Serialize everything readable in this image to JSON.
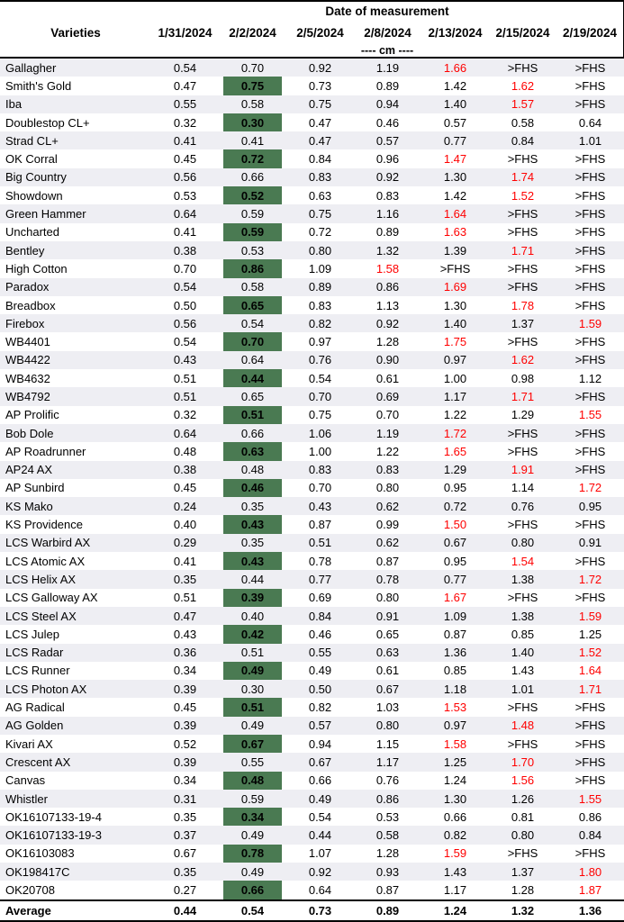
{
  "table": {
    "title": "Date of measurement",
    "unit_note": "---- cm ----",
    "columns": [
      "Varieties",
      "1/31/2024",
      "2/2/2024",
      "2/5/2024",
      "2/8/2024",
      "2/13/2024",
      "2/15/2024",
      "2/19/2024"
    ],
    "colors": {
      "highlight_green": "#4a7a52",
      "alert_red": "#ff0000",
      "row_stripe": "#eeeef3"
    },
    "rows": [
      {
        "name": "Gallagher",
        "values": [
          "0.54",
          "0.70",
          "0.92",
          "1.19",
          "1.66",
          ">FHS",
          ">FHS"
        ],
        "green": -1,
        "red": [
          4
        ]
      },
      {
        "name": "Smith's Gold",
        "values": [
          "0.47",
          "0.75",
          "0.73",
          "0.89",
          "1.42",
          "1.62",
          ">FHS"
        ],
        "green": 1,
        "red": [
          5
        ]
      },
      {
        "name": "Iba",
        "values": [
          "0.55",
          "0.58",
          "0.75",
          "0.94",
          "1.40",
          "1.57",
          ">FHS"
        ],
        "green": -1,
        "red": [
          5
        ]
      },
      {
        "name": "Doublestop CL+",
        "values": [
          "0.32",
          "0.30",
          "0.47",
          "0.46",
          "0.57",
          "0.58",
          "0.64"
        ],
        "green": 1,
        "red": []
      },
      {
        "name": "Strad CL+",
        "values": [
          "0.41",
          "0.41",
          "0.47",
          "0.57",
          "0.77",
          "0.84",
          "1.01"
        ],
        "green": -1,
        "red": []
      },
      {
        "name": "OK Corral",
        "values": [
          "0.45",
          "0.72",
          "0.84",
          "0.96",
          "1.47",
          ">FHS",
          ">FHS"
        ],
        "green": 1,
        "red": [
          4
        ]
      },
      {
        "name": "Big Country",
        "values": [
          "0.56",
          "0.66",
          "0.83",
          "0.92",
          "1.30",
          "1.74",
          ">FHS"
        ],
        "green": -1,
        "red": [
          5
        ]
      },
      {
        "name": "Showdown",
        "values": [
          "0.53",
          "0.52",
          "0.63",
          "0.83",
          "1.42",
          "1.52",
          ">FHS"
        ],
        "green": 1,
        "red": [
          5
        ]
      },
      {
        "name": "Green Hammer",
        "values": [
          "0.64",
          "0.59",
          "0.75",
          "1.16",
          "1.64",
          ">FHS",
          ">FHS"
        ],
        "green": -1,
        "red": [
          4
        ]
      },
      {
        "name": "Uncharted",
        "values": [
          "0.41",
          "0.59",
          "0.72",
          "0.89",
          "1.63",
          ">FHS",
          ">FHS"
        ],
        "green": 1,
        "red": [
          4
        ]
      },
      {
        "name": "Bentley",
        "values": [
          "0.38",
          "0.53",
          "0.80",
          "1.32",
          "1.39",
          "1.71",
          ">FHS"
        ],
        "green": -1,
        "red": [
          5
        ]
      },
      {
        "name": "High Cotton",
        "values": [
          "0.70",
          "0.86",
          "1.09",
          "1.58",
          ">FHS",
          ">FHS",
          ">FHS"
        ],
        "green": 1,
        "red": [
          3
        ]
      },
      {
        "name": "Paradox",
        "values": [
          "0.54",
          "0.58",
          "0.89",
          "0.86",
          "1.69",
          ">FHS",
          ">FHS"
        ],
        "green": -1,
        "red": [
          4
        ]
      },
      {
        "name": "Breadbox",
        "values": [
          "0.50",
          "0.65",
          "0.83",
          "1.13",
          "1.30",
          "1.78",
          ">FHS"
        ],
        "green": 1,
        "red": [
          5
        ]
      },
      {
        "name": "Firebox",
        "values": [
          "0.56",
          "0.54",
          "0.82",
          "0.92",
          "1.40",
          "1.37",
          "1.59"
        ],
        "green": -1,
        "red": [
          6
        ]
      },
      {
        "name": "WB4401",
        "values": [
          "0.54",
          "0.70",
          "0.97",
          "1.28",
          "1.75",
          ">FHS",
          ">FHS"
        ],
        "green": 1,
        "red": [
          4
        ]
      },
      {
        "name": "WB4422",
        "values": [
          "0.43",
          "0.64",
          "0.76",
          "0.90",
          "0.97",
          "1.62",
          ">FHS"
        ],
        "green": -1,
        "red": [
          5
        ]
      },
      {
        "name": "WB4632",
        "values": [
          "0.51",
          "0.44",
          "0.54",
          "0.61",
          "1.00",
          "0.98",
          "1.12"
        ],
        "green": 1,
        "red": []
      },
      {
        "name": "WB4792",
        "values": [
          "0.51",
          "0.65",
          "0.70",
          "0.69",
          "1.17",
          "1.71",
          ">FHS"
        ],
        "green": -1,
        "red": [
          5
        ]
      },
      {
        "name": "AP Prolific",
        "values": [
          "0.32",
          "0.51",
          "0.75",
          "0.70",
          "1.22",
          "1.29",
          "1.55"
        ],
        "green": 1,
        "red": [
          6
        ]
      },
      {
        "name": "Bob Dole",
        "values": [
          "0.64",
          "0.66",
          "1.06",
          "1.19",
          "1.72",
          ">FHS",
          ">FHS"
        ],
        "green": -1,
        "red": [
          4
        ]
      },
      {
        "name": "AP Roadrunner",
        "values": [
          "0.48",
          "0.63",
          "1.00",
          "1.22",
          "1.65",
          ">FHS",
          ">FHS"
        ],
        "green": 1,
        "red": [
          4
        ]
      },
      {
        "name": "AP24 AX",
        "values": [
          "0.38",
          "0.48",
          "0.83",
          "0.83",
          "1.29",
          "1.91",
          ">FHS"
        ],
        "green": -1,
        "red": [
          5
        ]
      },
      {
        "name": "AP Sunbird",
        "values": [
          "0.45",
          "0.46",
          "0.70",
          "0.80",
          "0.95",
          "1.14",
          "1.72"
        ],
        "green": 1,
        "red": [
          6
        ]
      },
      {
        "name": "KS Mako",
        "values": [
          "0.24",
          "0.35",
          "0.43",
          "0.62",
          "0.72",
          "0.76",
          "0.95"
        ],
        "green": -1,
        "red": []
      },
      {
        "name": "KS Providence",
        "values": [
          "0.40",
          "0.43",
          "0.87",
          "0.99",
          "1.50",
          ">FHS",
          ">FHS"
        ],
        "green": 1,
        "red": [
          4
        ]
      },
      {
        "name": "LCS Warbird AX",
        "values": [
          "0.29",
          "0.35",
          "0.51",
          "0.62",
          "0.67",
          "0.80",
          "0.91"
        ],
        "green": -1,
        "red": []
      },
      {
        "name": "LCS Atomic AX",
        "values": [
          "0.41",
          "0.43",
          "0.78",
          "0.87",
          "0.95",
          "1.54",
          ">FHS"
        ],
        "green": 1,
        "red": [
          5
        ]
      },
      {
        "name": "LCS Helix AX",
        "values": [
          "0.35",
          "0.44",
          "0.77",
          "0.78",
          "0.77",
          "1.38",
          "1.72"
        ],
        "green": -1,
        "red": [
          6
        ]
      },
      {
        "name": "LCS Galloway AX",
        "values": [
          "0.51",
          "0.39",
          "0.69",
          "0.80",
          "1.67",
          ">FHS",
          ">FHS"
        ],
        "green": 1,
        "red": [
          4
        ]
      },
      {
        "name": "LCS Steel AX",
        "values": [
          "0.47",
          "0.40",
          "0.84",
          "0.91",
          "1.09",
          "1.38",
          "1.59"
        ],
        "green": -1,
        "red": [
          6
        ]
      },
      {
        "name": "LCS Julep",
        "values": [
          "0.43",
          "0.42",
          "0.46",
          "0.65",
          "0.87",
          "0.85",
          "1.25"
        ],
        "green": 1,
        "red": []
      },
      {
        "name": "LCS Radar",
        "values": [
          "0.36",
          "0.51",
          "0.55",
          "0.63",
          "1.36",
          "1.40",
          "1.52"
        ],
        "green": -1,
        "red": [
          6
        ]
      },
      {
        "name": "LCS Runner",
        "values": [
          "0.34",
          "0.49",
          "0.49",
          "0.61",
          "0.85",
          "1.43",
          "1.64"
        ],
        "green": 1,
        "red": [
          6
        ]
      },
      {
        "name": "LCS Photon AX",
        "values": [
          "0.39",
          "0.30",
          "0.50",
          "0.67",
          "1.18",
          "1.01",
          "1.71"
        ],
        "green": -1,
        "red": [
          6
        ]
      },
      {
        "name": "AG Radical",
        "values": [
          "0.45",
          "0.51",
          "0.82",
          "1.03",
          "1.53",
          ">FHS",
          ">FHS"
        ],
        "green": 1,
        "red": [
          4
        ]
      },
      {
        "name": "AG Golden",
        "values": [
          "0.39",
          "0.49",
          "0.57",
          "0.80",
          "0.97",
          "1.48",
          ">FHS"
        ],
        "green": -1,
        "red": [
          5
        ]
      },
      {
        "name": "Kivari AX",
        "values": [
          "0.52",
          "0.67",
          "0.94",
          "1.15",
          "1.58",
          ">FHS",
          ">FHS"
        ],
        "green": 1,
        "red": [
          4
        ]
      },
      {
        "name": "Crescent AX",
        "values": [
          "0.39",
          "0.55",
          "0.67",
          "1.17",
          "1.25",
          "1.70",
          ">FHS"
        ],
        "green": -1,
        "red": [
          5
        ]
      },
      {
        "name": "Canvas",
        "values": [
          "0.34",
          "0.48",
          "0.66",
          "0.76",
          "1.24",
          "1.56",
          ">FHS"
        ],
        "green": 1,
        "red": [
          5
        ]
      },
      {
        "name": "Whistler",
        "values": [
          "0.31",
          "0.59",
          "0.49",
          "0.86",
          "1.30",
          "1.26",
          "1.55"
        ],
        "green": -1,
        "red": [
          6
        ]
      },
      {
        "name": "OK16107133-19-4",
        "values": [
          "0.35",
          "0.34",
          "0.54",
          "0.53",
          "0.66",
          "0.81",
          "0.86"
        ],
        "green": 1,
        "red": []
      },
      {
        "name": "OK16107133-19-3",
        "values": [
          "0.37",
          "0.49",
          "0.44",
          "0.58",
          "0.82",
          "0.80",
          "0.84"
        ],
        "green": -1,
        "red": []
      },
      {
        "name": "OK16103083",
        "values": [
          "0.67",
          "0.78",
          "1.07",
          "1.28",
          "1.59",
          ">FHS",
          ">FHS"
        ],
        "green": 1,
        "red": [
          4
        ]
      },
      {
        "name": "OK198417C",
        "values": [
          "0.35",
          "0.49",
          "0.92",
          "0.93",
          "1.43",
          "1.37",
          "1.80"
        ],
        "green": -1,
        "red": [
          6
        ]
      },
      {
        "name": "OK20708",
        "values": [
          "0.27",
          "0.66",
          "0.64",
          "0.87",
          "1.17",
          "1.28",
          "1.87"
        ],
        "green": 1,
        "red": [
          6
        ]
      }
    ],
    "average": {
      "label": "Average",
      "values": [
        "0.44",
        "0.54",
        "0.73",
        "0.89",
        "1.24",
        "1.32",
        "1.36"
      ]
    }
  }
}
